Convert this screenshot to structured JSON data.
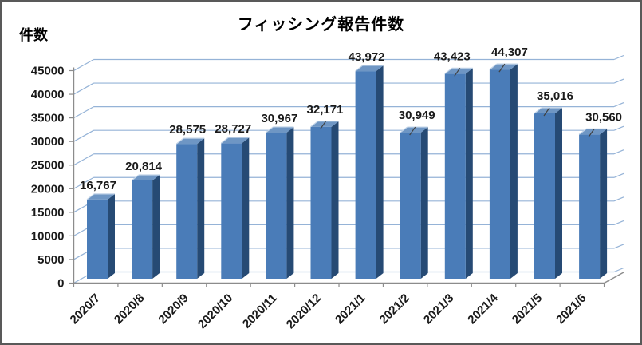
{
  "chart_data": {
    "type": "bar",
    "style": "3d-clustered-column",
    "title": "フィッシング報告件数",
    "y_axis_label": "件数",
    "xlabel": "",
    "ylabel": "件数",
    "categories": [
      "2020/7",
      "2020/8",
      "2020/9",
      "2020/10",
      "2020/11",
      "2020/12",
      "2021/1",
      "2021/2",
      "2021/3",
      "2021/4",
      "2021/5",
      "2021/6"
    ],
    "values": [
      16767,
      20814,
      28575,
      28727,
      30967,
      32171,
      43972,
      30949,
      43423,
      44307,
      35016,
      30560
    ],
    "data_labels": [
      "16,767",
      "20,814",
      "28,575",
      "28,727",
      "30,967",
      "32,171",
      "43,972",
      "30,949",
      "43,423",
      "44,307",
      "35,016",
      "30,560"
    ],
    "label_leader_lines": [
      false,
      false,
      false,
      false,
      false,
      true,
      false,
      true,
      true,
      true,
      true,
      true
    ],
    "label_dx": [
      1,
      2,
      1,
      2,
      4,
      5,
      1,
      8,
      -4,
      12,
      13,
      18
    ],
    "ylim": [
      0,
      45000
    ],
    "y_tick_step": 5000,
    "y_tick_labels": [
      "0",
      "5000",
      "10000",
      "15000",
      "20000",
      "25000",
      "30000",
      "35000",
      "40000",
      "45000"
    ],
    "grid": true,
    "legend": "none",
    "colors": {
      "bar_front": "#4A7CB8",
      "bar_side": "#264A74",
      "bar_top": "#6E96C4",
      "bar_top_edge": "#C2D4E8",
      "gridline": "#95B3D7",
      "axis": "#8C8C8C",
      "text": "#1a1a1a",
      "leader": "#404040"
    }
  }
}
